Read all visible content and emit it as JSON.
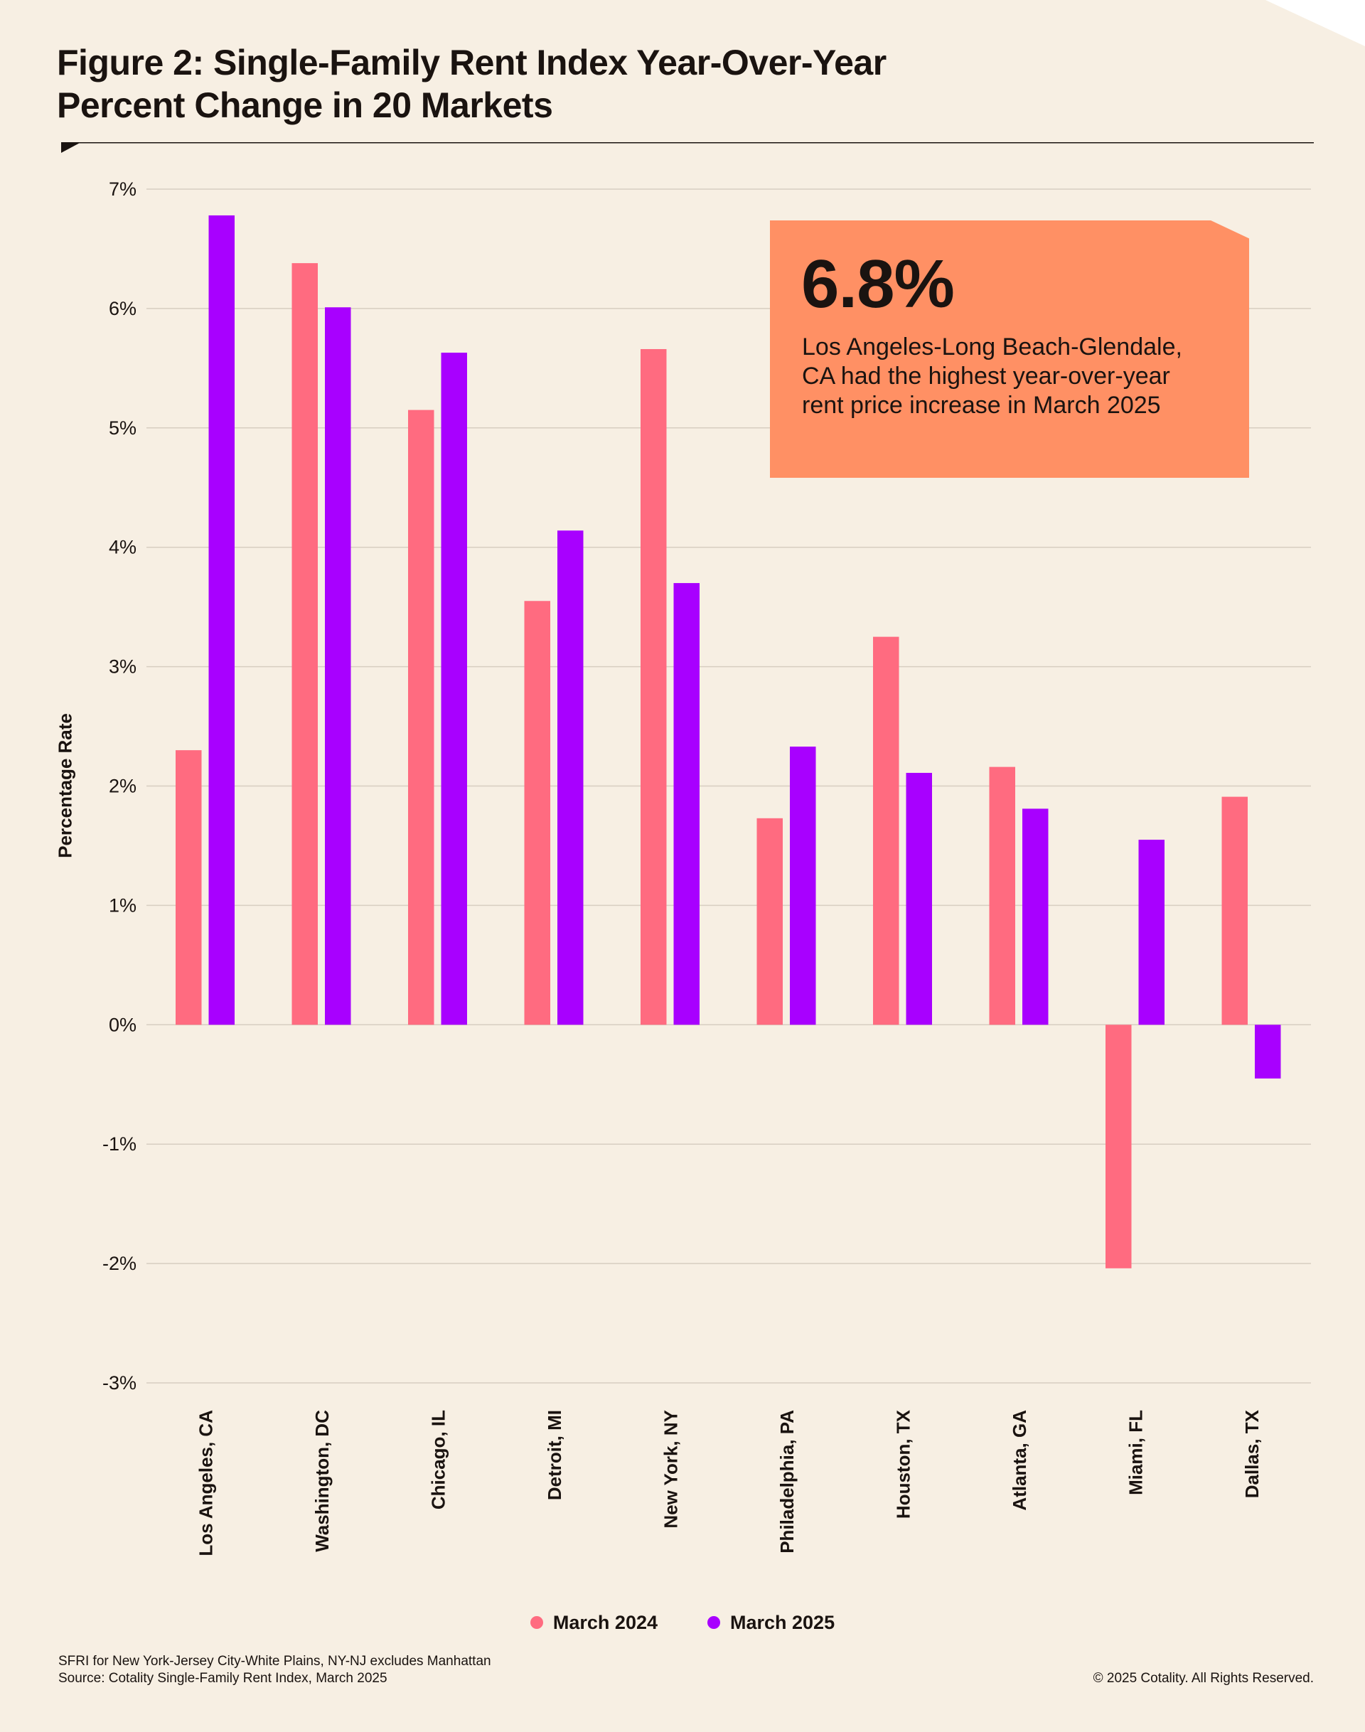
{
  "chart_data": {
    "type": "bar",
    "title": "Figure 2: Single-Family Rent Index Year-Over-Year Percent Change in 20 Markets",
    "xlabel": "",
    "ylabel": "Percentage Rate",
    "ylim": [
      -3,
      7
    ],
    "yticks": [
      "7%",
      "6%",
      "5%",
      "4%",
      "3%",
      "2%",
      "1%",
      "0%",
      "-1%",
      "-2%",
      "-3%"
    ],
    "categories": [
      "Los Angeles, CA",
      "Washington, DC",
      "Chicago, IL",
      "Detroit, MI",
      "New York, NY",
      "Philadelphia, PA",
      "Houston, TX",
      "Atlanta, GA",
      "Miami, FL",
      "Dallas, TX"
    ],
    "series": [
      {
        "name": "March 2024",
        "color": "#ff6b80",
        "values": [
          2.3,
          6.38,
          5.15,
          3.55,
          5.66,
          1.73,
          3.25,
          2.16,
          -2.04,
          1.91
        ]
      },
      {
        "name": "March 2025",
        "color": "#a800ff",
        "values": [
          6.78,
          6.01,
          5.63,
          4.14,
          3.7,
          2.33,
          2.11,
          1.81,
          1.55,
          -0.45
        ]
      }
    ],
    "grid": true,
    "legend_position": "bottom-center"
  },
  "title_lines": [
    "Figure 2: Single-Family Rent Index Year-Over-Year",
    "Percent Change in 20 Markets"
  ],
  "callout": {
    "value": "6.8%",
    "text": "Los Angeles-Long Beach-Glendale, CA had the highest year-over-year rent price increase in March 2025"
  },
  "legend": [
    {
      "label": "March 2024",
      "color": "#ff6b80"
    },
    {
      "label": "March 2025",
      "color": "#a800ff"
    }
  ],
  "footnote": {
    "line1": "SFRI for New York-Jersey City-White Plains, NY-NJ excludes Manhattan",
    "line2": "Source: Cotality Single-Family Rent Index, March 2025"
  },
  "copyright": "© 2025 Cotality. All Rights Reserved."
}
